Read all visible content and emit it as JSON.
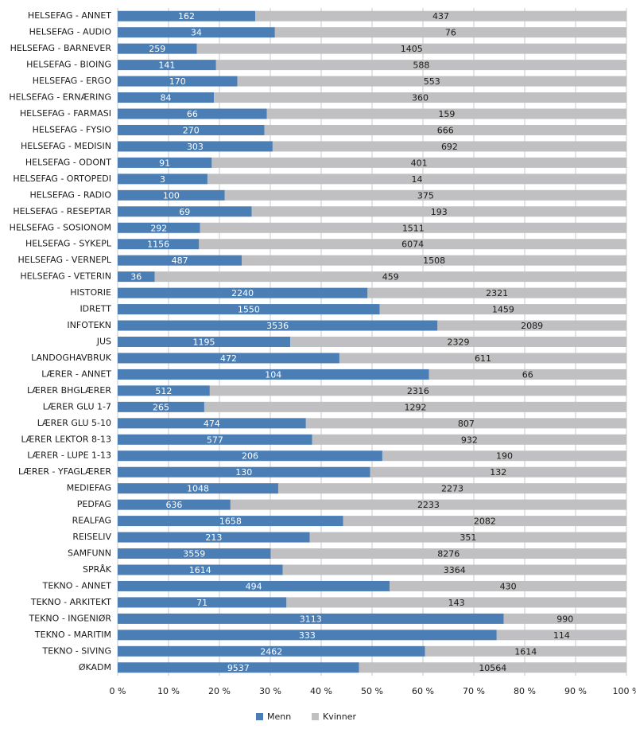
{
  "chart_data": {
    "type": "stacked_bar_100",
    "orientation": "horizontal",
    "categories": [
      "HELSEFAG - ANNET",
      "HELSEFAG - AUDIO",
      "HELSEFAG - BARNEVER",
      "HELSEFAG - BIOING",
      "HELSEFAG - ERGO",
      "HELSEFAG - ERNÆRING",
      "HELSEFAG - FARMASI",
      "HELSEFAG - FYSIO",
      "HELSEFAG - MEDISIN",
      "HELSEFAG - ODONT",
      "HELSEFAG - ORTOPEDI",
      "HELSEFAG - RADIO",
      "HELSEFAG - RESEPTAR",
      "HELSEFAG - SOSIONOM",
      "HELSEFAG - SYKEPL",
      "HELSEFAG - VERNEPL",
      "HELSEFAG - VETERIN",
      "HISTORIE",
      "IDRETT",
      "INFOTEKN",
      "JUS",
      "LANDOGHAVBRUK",
      "LÆRER - ANNET",
      "LÆRER BHGLÆRER",
      "LÆRER GLU 1-7",
      "LÆRER GLU 5-10",
      "LÆRER LEKTOR 8-13",
      "LÆRER - LUPE 1-13",
      "LÆRER - YFAGLÆRER",
      "MEDIEFAG",
      "PEDFAG",
      "REALFAG",
      "REISELIV",
      "SAMFUNN",
      "SPRÅK",
      "TEKNO - ANNET",
      "TEKNO - ARKITEKT",
      "TEKNO - INGENIØR",
      "TEKNO - MARITIM",
      "TEKNO - SIVING",
      "ØKADM"
    ],
    "series": [
      {
        "name": "Menn",
        "color": "#4a7eb5",
        "label_color": "#ffffff",
        "values": [
          162,
          34,
          259,
          141,
          170,
          84,
          66,
          270,
          303,
          91,
          3,
          100,
          69,
          292,
          1156,
          487,
          36,
          2240,
          1550,
          3536,
          1195,
          472,
          104,
          512,
          265,
          474,
          577,
          206,
          130,
          1048,
          636,
          1658,
          213,
          3559,
          1614,
          494,
          71,
          3113,
          333,
          2462,
          9537
        ]
      },
      {
        "name": "Kvinner",
        "color": "#c0c0c2",
        "label_color": "#1a1a1a",
        "values": [
          437,
          76,
          1405,
          588,
          553,
          360,
          159,
          666,
          692,
          401,
          14,
          375,
          193,
          1511,
          6074,
          1508,
          459,
          2321,
          1459,
          2089,
          2329,
          611,
          66,
          2316,
          1292,
          807,
          932,
          190,
          132,
          2273,
          2233,
          2082,
          351,
          8276,
          3364,
          430,
          143,
          990,
          114,
          1614,
          10564
        ]
      }
    ],
    "xlim": [
      0,
      100
    ],
    "xticks": [
      {
        "value": 0,
        "label": "0 %"
      },
      {
        "value": 10,
        "label": "10 %"
      },
      {
        "value": 20,
        "label": "20 %"
      },
      {
        "value": 30,
        "label": "30 %"
      },
      {
        "value": 40,
        "label": "40 %"
      },
      {
        "value": 50,
        "label": "50 %"
      },
      {
        "value": 60,
        "label": "60 %"
      },
      {
        "value": 70,
        "label": "70 %"
      },
      {
        "value": 80,
        "label": "80 %"
      },
      {
        "value": 90,
        "label": "90 %"
      },
      {
        "value": 100,
        "label": "100 %"
      }
    ],
    "grid": true,
    "legend": "bottom"
  }
}
